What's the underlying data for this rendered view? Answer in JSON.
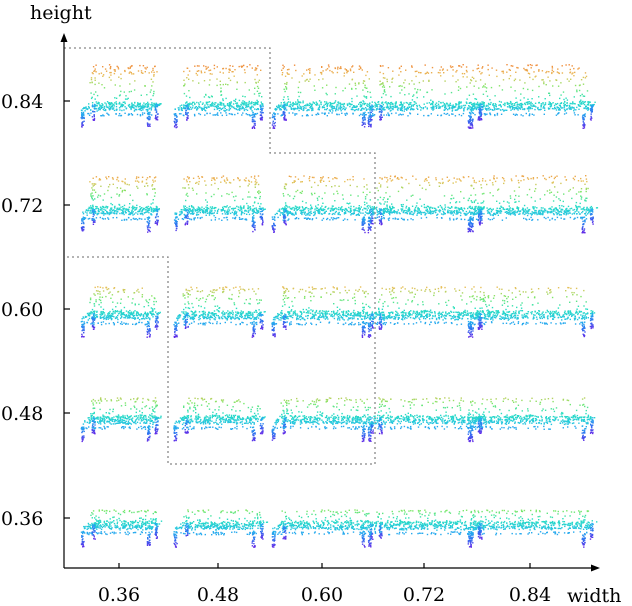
{
  "chart_data": {
    "type": "scatter",
    "xlabel": "width",
    "ylabel": "height",
    "x_ticks": [
      "0.36",
      "0.48",
      "0.60",
      "0.72",
      "0.84"
    ],
    "y_ticks": [
      "0.84",
      "0.72",
      "0.60",
      "0.48",
      "0.36"
    ],
    "x_values": [
      0.36,
      0.48,
      0.6,
      0.72,
      0.84
    ],
    "y_values": [
      0.84,
      0.72,
      0.6,
      0.48,
      0.36
    ],
    "xlim": [
      0.3,
      0.96
    ],
    "ylim": [
      0.3,
      0.92
    ],
    "grid": false,
    "cell_content": "chair point cloud",
    "colormap": [
      "#6a1fe6",
      "#2f6ff0",
      "#22b8ee",
      "#28e0c0",
      "#7ae86a",
      "#e8c05a",
      "#f08a3a"
    ],
    "dotted_region_color": "#888888"
  }
}
